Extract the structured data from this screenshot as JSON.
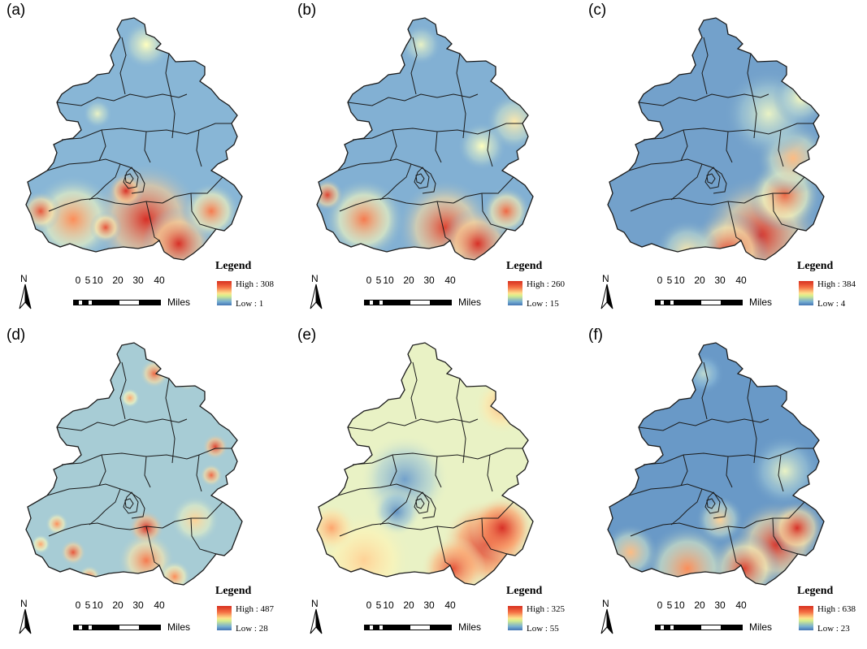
{
  "colors": {
    "low": "#4575b4",
    "mid_low": "#91bfdb",
    "mid": "#ffffbf",
    "mid_high": "#fc8d59",
    "high": "#d73027",
    "boundary": "#1a1a1a"
  },
  "common": {
    "legend_title": "Legend",
    "north_label": "N",
    "scale_labels": [
      "0",
      "5",
      "10",
      "20",
      "30",
      "40"
    ],
    "scale_unit": "Miles"
  },
  "panels": [
    {
      "label": "(a)",
      "high": "High : 308",
      "low": "Low : 1",
      "high_value": 308,
      "low_value": 1,
      "pattern": "south-hot-patchy"
    },
    {
      "label": "(b)",
      "high": "High : 260",
      "low": "Low : 15",
      "high_value": 260,
      "low_value": 15,
      "pattern": "south-hot-east-warm"
    },
    {
      "label": "(c)",
      "high": "High : 384",
      "low": "Low : 4",
      "high_value": 384,
      "low_value": 4,
      "pattern": "southeast-gradient"
    },
    {
      "label": "(d)",
      "high": "High : 487",
      "low": "Low : 28",
      "high_value": 487,
      "low_value": 28,
      "pattern": "scattered-hotspots"
    },
    {
      "label": "(e)",
      "high": "High : 325",
      "low": "Low : 55",
      "high_value": 325,
      "low_value": 55,
      "pattern": "southeast-hot-smooth"
    },
    {
      "label": "(f)",
      "high": "High : 638",
      "low": "Low : 23",
      "high_value": 638,
      "low_value": 23,
      "pattern": "southeast-hot-north-cold"
    }
  ]
}
